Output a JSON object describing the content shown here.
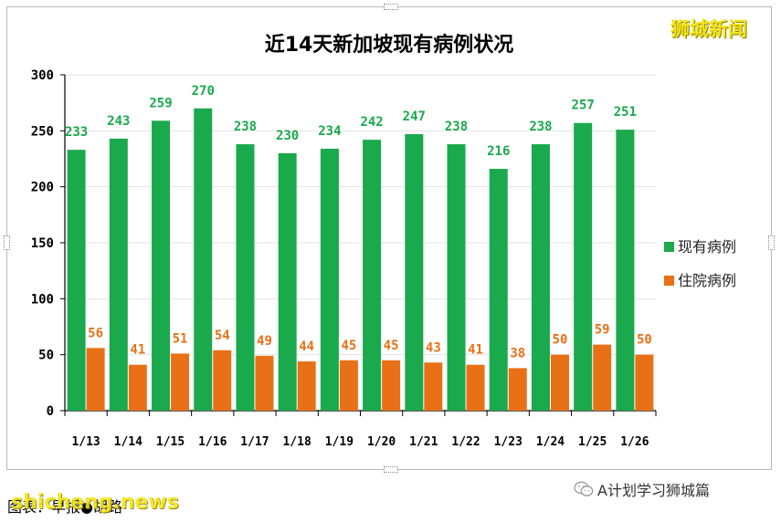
{
  "watermark_top": "狮城新闻",
  "source_note": "图表：早报●胡路",
  "watermark_bottom": "shicheng.news",
  "credit": {
    "icon": "wechat-icon",
    "text": "A计划学习狮城篇"
  },
  "chart_data": {
    "type": "bar",
    "title": "近14天新加坡现有病例状况",
    "categories": [
      "1/13",
      "1/14",
      "1/15",
      "1/16",
      "1/17",
      "1/18",
      "1/19",
      "1/20",
      "1/21",
      "1/22",
      "1/23",
      "1/24",
      "1/25",
      "1/26"
    ],
    "series": [
      {
        "name": "现有病例",
        "color": "#1aa94c",
        "values": [
          233,
          243,
          259,
          270,
          238,
          230,
          234,
          242,
          247,
          238,
          216,
          238,
          257,
          251
        ]
      },
      {
        "name": "住院病例",
        "color": "#e87117",
        "values": [
          56,
          41,
          51,
          54,
          49,
          44,
          45,
          45,
          43,
          41,
          38,
          50,
          59,
          50
        ]
      }
    ],
    "ylim": [
      0,
      300
    ],
    "yticks": [
      "0",
      "50",
      "100",
      "150",
      "200",
      "250",
      "300"
    ],
    "grid": true,
    "legend_position": "right"
  }
}
